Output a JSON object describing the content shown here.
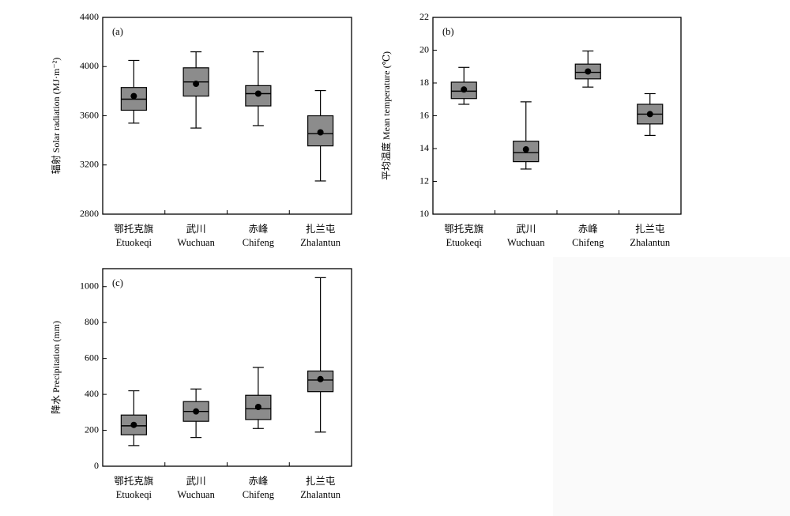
{
  "chart_data": [
    {
      "type": "box",
      "panel_label": "(a)",
      "ylabel": "辐射 Solar radiation (MJ·m⁻²)",
      "ylim": [
        2800,
        4400
      ],
      "yticks": [
        2800,
        3200,
        3600,
        4000,
        4400
      ],
      "categories": [
        {
          "zh": "鄂托克旗",
          "en": "Etuokeqi"
        },
        {
          "zh": "武川",
          "en": "Wuchuan"
        },
        {
          "zh": "赤峰",
          "en": "Chifeng"
        },
        {
          "zh": "扎兰屯",
          "en": "Zhalantun"
        }
      ],
      "boxes": [
        {
          "min": 3540,
          "q1": 3645,
          "median": 3735,
          "q3": 3830,
          "max": 4050,
          "mean": 3760
        },
        {
          "min": 3500,
          "q1": 3760,
          "median": 3875,
          "q3": 3990,
          "max": 4120,
          "mean": 3860
        },
        {
          "min": 3520,
          "q1": 3680,
          "median": 3780,
          "q3": 3845,
          "max": 4120,
          "mean": 3780
        },
        {
          "min": 3070,
          "q1": 3355,
          "median": 3455,
          "q3": 3600,
          "max": 3805,
          "mean": 3465
        }
      ]
    },
    {
      "type": "box",
      "panel_label": "(b)",
      "ylabel": "平均温度 Mean temperature (℃)",
      "ylim": [
        10,
        22
      ],
      "yticks": [
        10,
        12,
        14,
        16,
        18,
        20,
        22
      ],
      "categories": [
        {
          "zh": "鄂托克旗",
          "en": "Etuokeqi"
        },
        {
          "zh": "武川",
          "en": "Wuchuan"
        },
        {
          "zh": "赤峰",
          "en": "Chifeng"
        },
        {
          "zh": "扎兰屯",
          "en": "Zhalantun"
        }
      ],
      "boxes": [
        {
          "min": 16.7,
          "q1": 17.05,
          "median": 17.5,
          "q3": 18.05,
          "max": 18.95,
          "mean": 17.6
        },
        {
          "min": 12.75,
          "q1": 13.2,
          "median": 13.75,
          "q3": 14.45,
          "max": 16.85,
          "mean": 13.95
        },
        {
          "min": 17.75,
          "q1": 18.25,
          "median": 18.65,
          "q3": 19.15,
          "max": 19.95,
          "mean": 18.7
        },
        {
          "min": 14.8,
          "q1": 15.5,
          "median": 16.1,
          "q3": 16.7,
          "max": 17.35,
          "mean": 16.1
        }
      ]
    },
    {
      "type": "box",
      "panel_label": "(c)",
      "ylabel": "降水 Precipitation (mm)",
      "ylim": [
        0,
        1100
      ],
      "yticks": [
        0,
        200,
        400,
        600,
        800,
        1000
      ],
      "categories": [
        {
          "zh": "鄂托克旗",
          "en": "Etuokeqi"
        },
        {
          "zh": "武川",
          "en": "Wuchuan"
        },
        {
          "zh": "赤峰",
          "en": "Chifeng"
        },
        {
          "zh": "扎兰屯",
          "en": "Zhalantun"
        }
      ],
      "boxes": [
        {
          "min": 115,
          "q1": 175,
          "median": 225,
          "q3": 285,
          "max": 420,
          "mean": 230
        },
        {
          "min": 160,
          "q1": 250,
          "median": 305,
          "q3": 360,
          "max": 430,
          "mean": 305
        },
        {
          "min": 210,
          "q1": 260,
          "median": 320,
          "q3": 395,
          "max": 550,
          "mean": 330
        },
        {
          "min": 190,
          "q1": 415,
          "median": 480,
          "q3": 530,
          "max": 1050,
          "mean": 485
        }
      ]
    }
  ]
}
